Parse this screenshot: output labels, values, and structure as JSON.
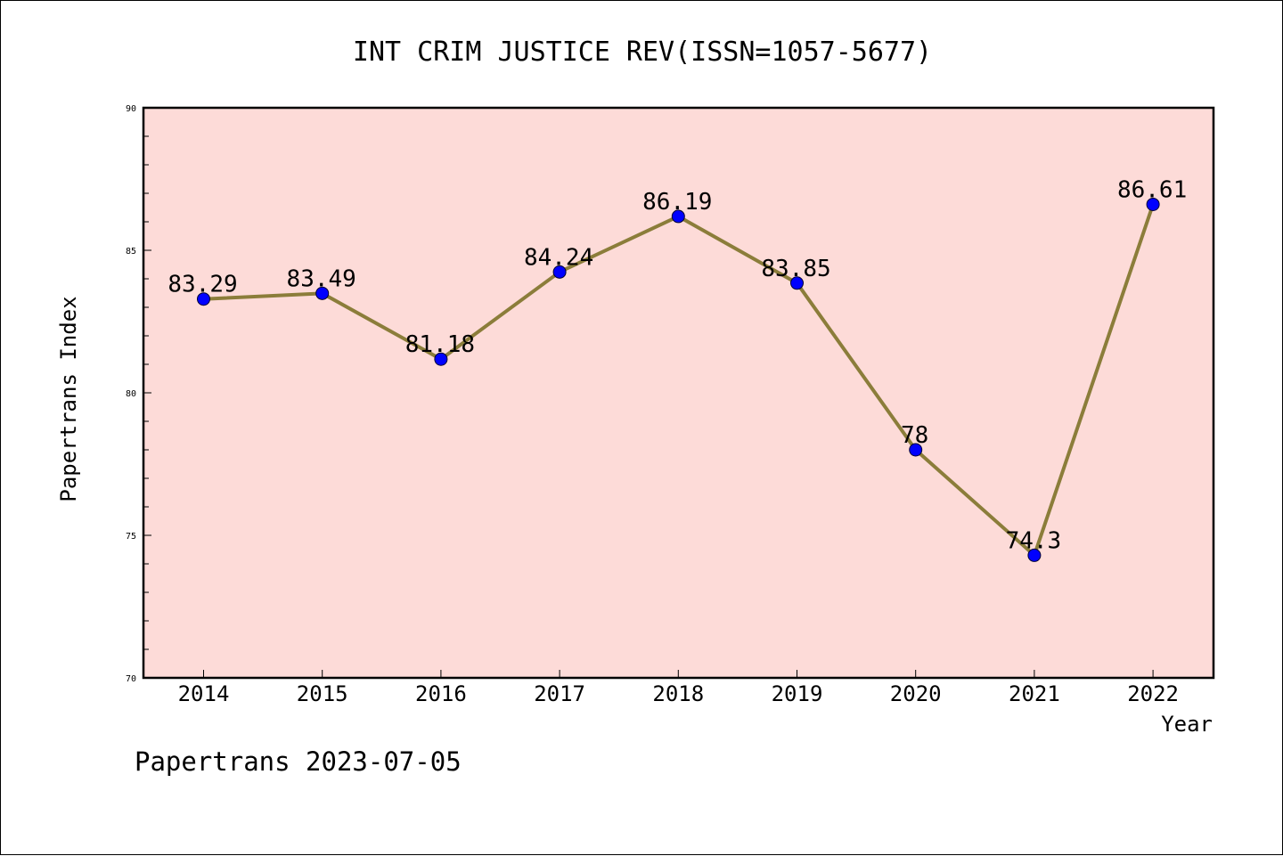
{
  "chart_data": {
    "type": "line",
    "title": "INT CRIM JUSTICE REV(ISSN=1057-5677)",
    "xlabel": "Year",
    "ylabel": "Papertrans Index",
    "categories": [
      "2014",
      "2015",
      "2016",
      "2017",
      "2018",
      "2019",
      "2020",
      "2021",
      "2022"
    ],
    "values": [
      83.29,
      83.49,
      81.18,
      84.24,
      86.19,
      83.85,
      78,
      74.3,
      86.61
    ],
    "data_labels": [
      "83.29",
      "83.49",
      "81.18",
      "84.24",
      "86.19",
      "83.85",
      "78",
      "74.3",
      "86.61"
    ],
    "ylim": [
      70,
      90
    ],
    "yticks": [
      70,
      75,
      80,
      85,
      90
    ],
    "grid": false,
    "colors": {
      "plot_background": "#fddbd8",
      "line": "#8b7d3a",
      "marker": "#0000ff"
    }
  },
  "footer": {
    "text": "Papertrans 2023-07-05"
  }
}
